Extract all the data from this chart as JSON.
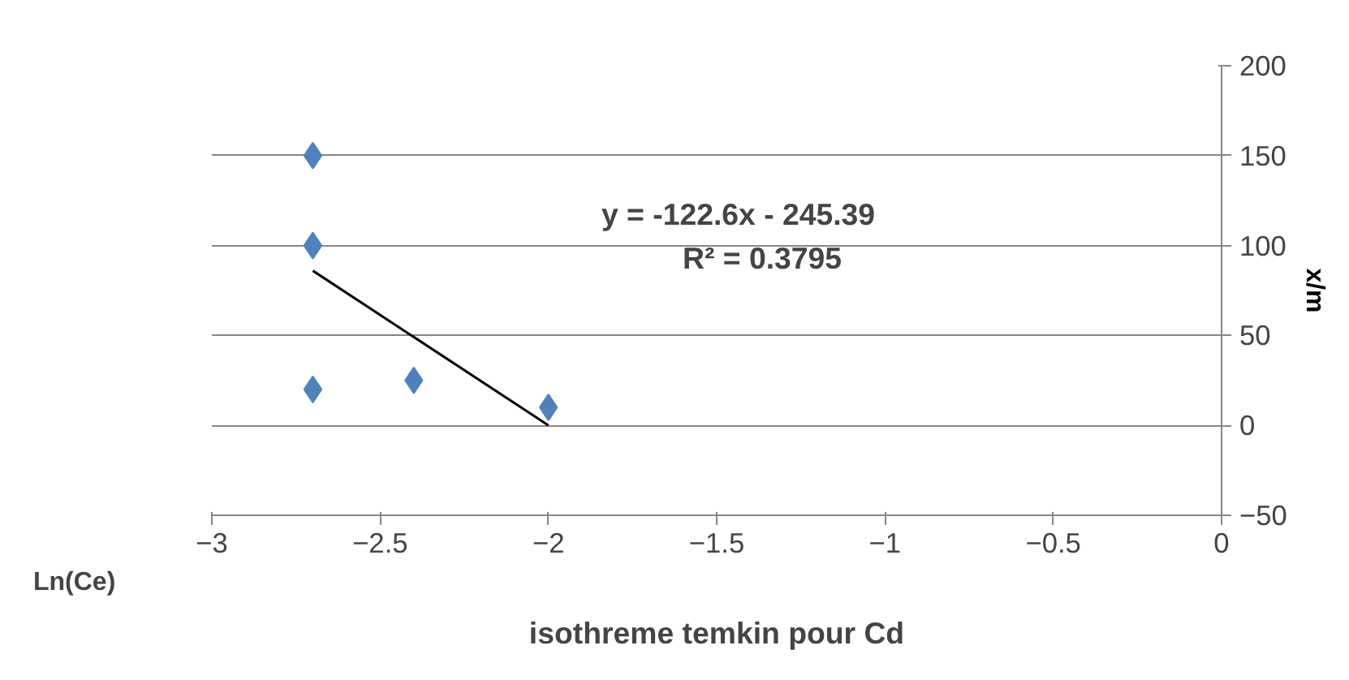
{
  "chart_data": {
    "type": "scatter",
    "title": "isothreme temkin pour Cd",
    "xlabel": "Ln(Ce)",
    "ylabel": "x/m",
    "xlim": [
      -3,
      0
    ],
    "xticks": [
      -3,
      -2.5,
      -2,
      -1.5,
      -1,
      -0.5,
      0
    ],
    "ylim": [
      -50,
      200
    ],
    "yticks": [
      -50,
      0,
      50,
      100,
      150,
      200
    ],
    "grid": "y",
    "marker": "diamond",
    "series": [
      {
        "color": "#4f81bd",
        "x": [
          -2.7,
          -2.7,
          -2.7,
          -2.4,
          -2.0
        ],
        "values": [
          150,
          100,
          20,
          25,
          10
        ]
      },
      {
        "type": "line",
        "marker": "none",
        "color": "#000000",
        "x": [
          -2.7,
          -2.0
        ],
        "values": [
          86,
          0
        ]
      }
    ],
    "annotations": [
      "y = -122.6x - 245.39",
      "R² = 0.3795"
    ]
  }
}
